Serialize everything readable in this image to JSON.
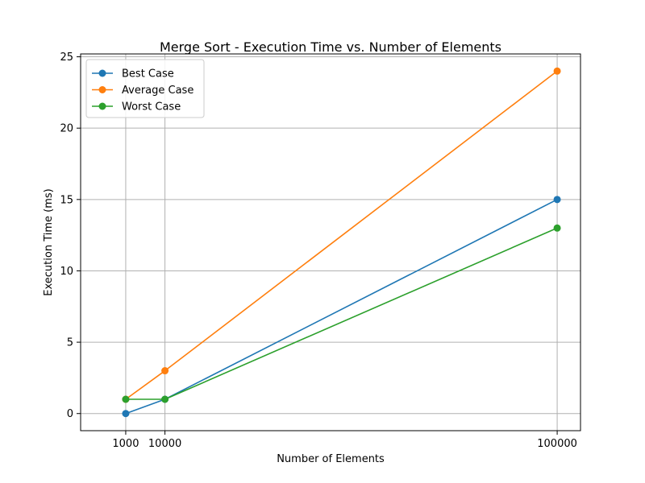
{
  "chart_data": {
    "type": "line",
    "title": "Merge Sort - Execution Time vs. Number of Elements",
    "xlabel": "Number of Elements",
    "ylabel": "Execution Time (ms)",
    "x": [
      1000,
      10000,
      100000
    ],
    "x_tick_labels": [
      "1000",
      "10000",
      "100000"
    ],
    "xlim": [
      -9350,
      105350
    ],
    "ylim": [
      -1.2,
      25.2
    ],
    "y_ticks": [
      0,
      5,
      10,
      15,
      20,
      25
    ],
    "grid": true,
    "legend_position": "top-left",
    "series": [
      {
        "name": "Best Case",
        "color": "#1f77b4",
        "values": [
          0,
          1,
          15
        ]
      },
      {
        "name": "Average Case",
        "color": "#ff7f0e",
        "values": [
          1,
          3,
          24
        ]
      },
      {
        "name": "Worst Case",
        "color": "#2ca02c",
        "values": [
          1,
          1,
          13
        ]
      }
    ]
  }
}
